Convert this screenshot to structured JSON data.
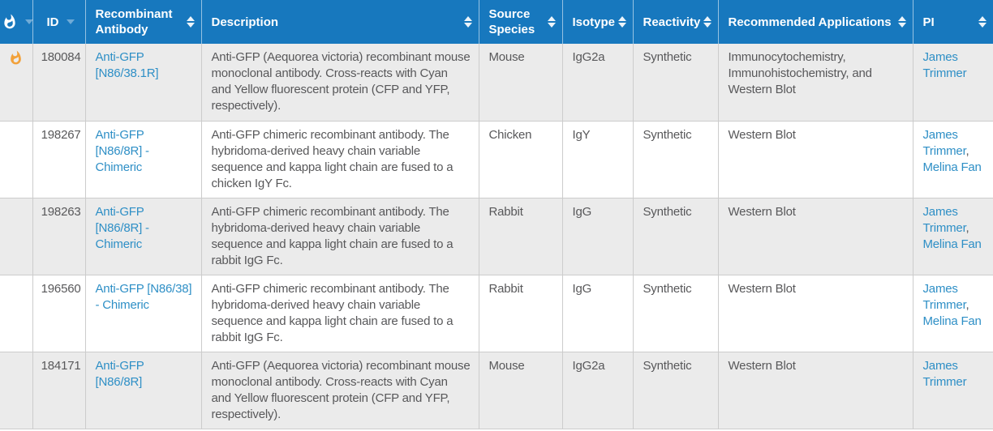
{
  "colors": {
    "header_bg": "#1778be",
    "header_text": "#ffffff",
    "link": "#2e8fc6",
    "flame": "#f2a13a",
    "row_stripe": "#ebebeb",
    "row_alt": "#ffffff",
    "body_text": "#58585a",
    "border": "#cccccc"
  },
  "table": {
    "columns": [
      {
        "key": "hot",
        "label": "",
        "icon": "flame-icon",
        "sort": "single"
      },
      {
        "key": "id",
        "label": "ID",
        "sort": "single"
      },
      {
        "key": "antibody",
        "label": "Recombinant Antibody",
        "sort": "both"
      },
      {
        "key": "description",
        "label": "Description",
        "sort": "both"
      },
      {
        "key": "source_species",
        "label": "Source Species",
        "sort": "both"
      },
      {
        "key": "isotype",
        "label": "Isotype",
        "sort": "both"
      },
      {
        "key": "reactivity",
        "label": "Reactivity",
        "sort": "both"
      },
      {
        "key": "applications",
        "label": "Recommended Applications",
        "sort": "both"
      },
      {
        "key": "pi",
        "label": "PI",
        "sort": "both"
      }
    ],
    "rows": [
      {
        "hot": true,
        "id": "180084",
        "antibody": "Anti-GFP [N86/38.1R]",
        "description": "Anti-GFP (Aequorea victoria) recombinant mouse monoclonal antibody. Cross-reacts with Cyan and Yellow fluorescent protein (CFP and YFP, respectively).",
        "source_species": "Mouse",
        "isotype": "IgG2a",
        "reactivity": "Synthetic",
        "applications": "Immunocytochemistry, Immunohistochemistry, and Western Blot",
        "pi": [
          "James Trimmer"
        ]
      },
      {
        "hot": false,
        "id": "198267",
        "antibody": "Anti-GFP [N86/8R] - Chimeric",
        "description": "Anti-GFP chimeric recombinant antibody. The hybridoma-derived heavy chain variable sequence and kappa light chain are fused to a chicken IgY Fc.",
        "source_species": "Chicken",
        "isotype": "IgY",
        "reactivity": "Synthetic",
        "applications": "Western Blot",
        "pi": [
          "James Trimmer",
          "Melina Fan"
        ]
      },
      {
        "hot": false,
        "id": "198263",
        "antibody": "Anti-GFP [N86/8R] - Chimeric",
        "description": "Anti-GFP chimeric recombinant antibody. The hybridoma-derived heavy chain variable sequence and kappa light chain are fused to a rabbit IgG Fc.",
        "source_species": "Rabbit",
        "isotype": "IgG",
        "reactivity": "Synthetic",
        "applications": "Western Blot",
        "pi": [
          "James Trimmer",
          "Melina Fan"
        ]
      },
      {
        "hot": false,
        "id": "196560",
        "antibody": "Anti-GFP [N86/38] - Chimeric",
        "description": "Anti-GFP chimeric recombinant antibody. The hybridoma-derived heavy chain variable sequence and kappa light chain are fused to a rabbit IgG Fc.",
        "source_species": "Rabbit",
        "isotype": "IgG",
        "reactivity": "Synthetic",
        "applications": "Western Blot",
        "pi": [
          "James Trimmer",
          "Melina Fan"
        ]
      },
      {
        "hot": false,
        "id": "184171",
        "antibody": "Anti-GFP [N86/8R]",
        "description": "Anti-GFP (Aequorea victoria) recombinant mouse monoclonal antibody. Cross-reacts with Cyan and Yellow fluorescent protein (CFP and YFP, respectively).",
        "source_species": "Mouse",
        "isotype": "IgG2a",
        "reactivity": "Synthetic",
        "applications": "Western Blot",
        "pi": [
          "James Trimmer"
        ]
      }
    ]
  }
}
